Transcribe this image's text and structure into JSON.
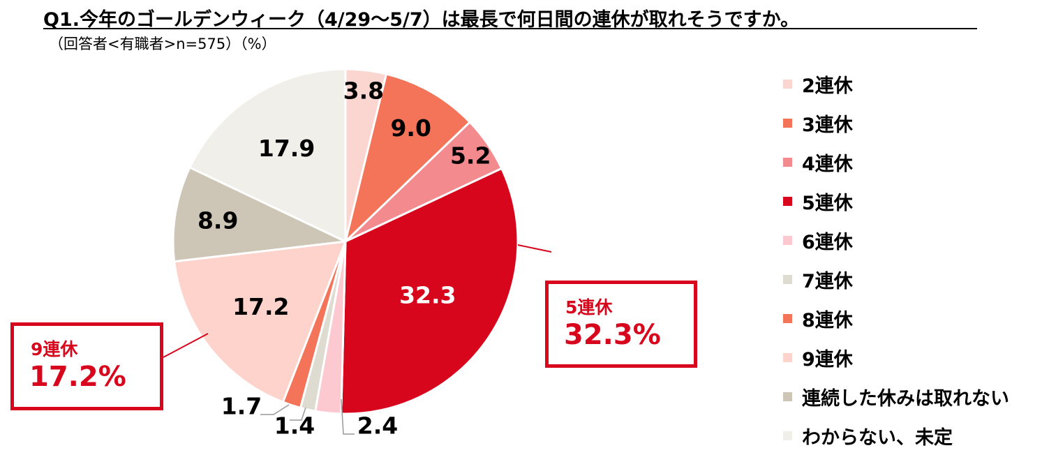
{
  "title": "Q1.今年のゴールデンウィーク（4/29～5/7）は最長で何日間の連休が取れそうですか。",
  "subtitle": "（回答者<有職者>n=575）（%）",
  "chart_data": {
    "type": "pie",
    "start": "12 o'clock, clockwise",
    "categories": [
      "2連休",
      "3連休",
      "4連休",
      "5連休",
      "6連休",
      "7連休",
      "8連休",
      "9連休",
      "連続した休みは取れない",
      "わからない、未定"
    ],
    "values": [
      3.8,
      9.0,
      5.2,
      32.3,
      2.4,
      1.4,
      1.7,
      17.2,
      8.9,
      17.9
    ],
    "value_labels": [
      "3.8",
      "9.0",
      "5.2",
      "32.3",
      "2.4",
      "1.4",
      "1.7",
      "17.2",
      "8.9",
      "17.9"
    ],
    "colors": [
      "#fbd5cf",
      "#f4745a",
      "#f28a8e",
      "#d7061c",
      "#fbc9cf",
      "#dedbd0",
      "#f4745a",
      "#fdd3cb",
      "#cdc6b6",
      "#f1efea"
    ],
    "legend_position": "right"
  },
  "callouts": [
    {
      "category": "5連休",
      "value": "32.3%"
    },
    {
      "category": "9連休",
      "value": "17.2%"
    }
  ]
}
